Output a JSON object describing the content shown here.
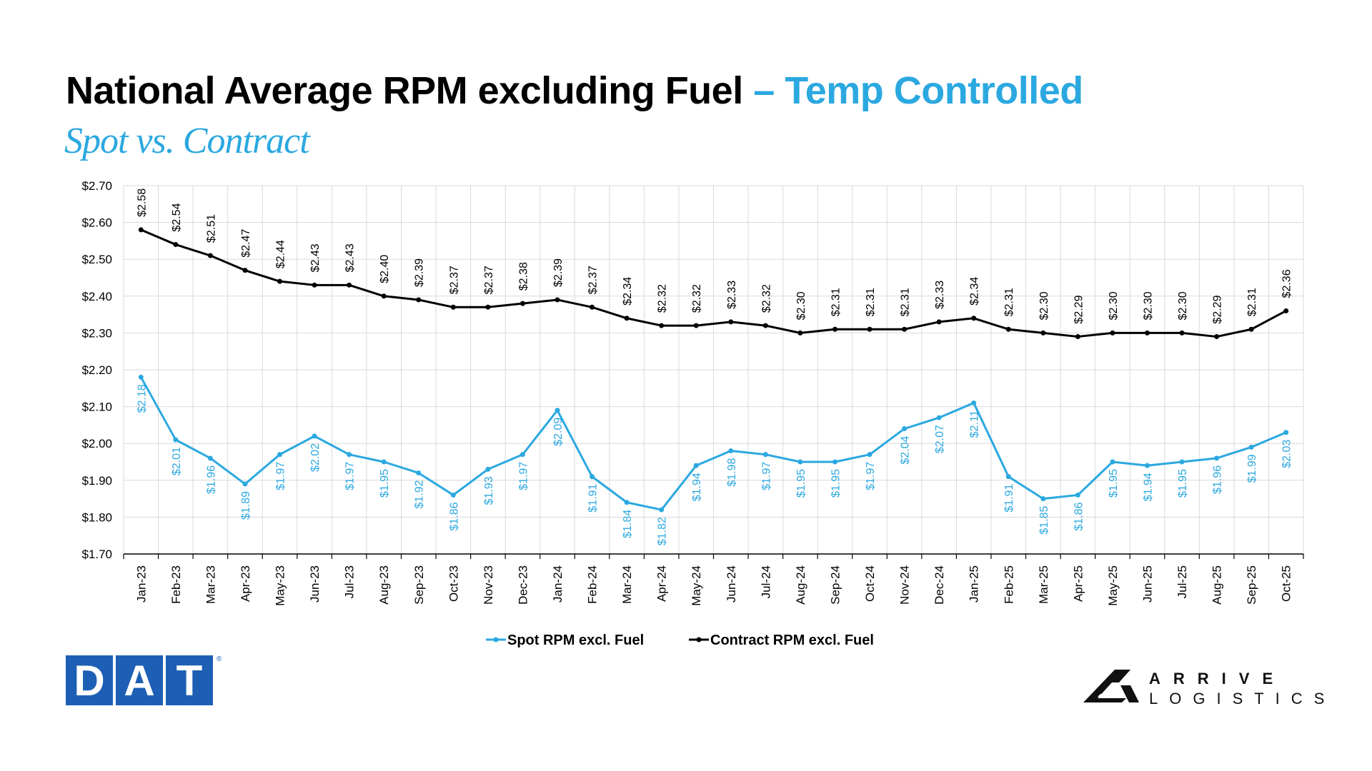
{
  "header": {
    "title_main": "National Average RPM excluding Fuel",
    "title_accent": "– Temp Controlled",
    "subtitle": "Spot vs. Contract"
  },
  "logos": {
    "dat_letters": [
      "D",
      "A",
      "T"
    ],
    "dat_registered": "®",
    "arrive_top": "ARRIVE",
    "arrive_bottom": "LOGISTICS"
  },
  "colors": {
    "spot": "#2ba8e0",
    "contract": "#000000",
    "grid": "#d9d9d9",
    "dat_blue": "#1d5fb4"
  },
  "chart_data": {
    "type": "line",
    "title": "National Average RPM excluding Fuel – Temp Controlled",
    "subtitle": "Spot vs. Contract",
    "xlabel": "",
    "ylabel": "",
    "ylim": [
      1.7,
      2.7
    ],
    "y_ticks": [
      "$1.70",
      "$1.80",
      "$1.90",
      "$2.00",
      "$2.10",
      "$2.20",
      "$2.30",
      "$2.40",
      "$2.50",
      "$2.60",
      "$2.70"
    ],
    "grid": true,
    "legend_position": "bottom",
    "categories": [
      "Jan-23",
      "Feb-23",
      "Mar-23",
      "Apr-23",
      "May-23",
      "Jun-23",
      "Jul-23",
      "Aug-23",
      "Sep-23",
      "Oct-23",
      "Nov-23",
      "Dec-23",
      "Jan-24",
      "Feb-24",
      "Mar-24",
      "Apr-24",
      "May-24",
      "Jun-24",
      "Jul-24",
      "Aug-24",
      "Sep-24",
      "Oct-24",
      "Nov-24",
      "Dec-24",
      "Jan-25",
      "Feb-25",
      "Mar-25",
      "Apr-25",
      "May-25",
      "Jun-25",
      "Jul-25",
      "Aug-25",
      "Sep-25",
      "Oct-25"
    ],
    "series": [
      {
        "name": "Spot RPM excl. Fuel",
        "values": [
          2.18,
          2.01,
          1.96,
          1.89,
          1.97,
          2.02,
          1.97,
          1.95,
          1.92,
          1.86,
          1.93,
          1.97,
          2.09,
          1.91,
          1.84,
          1.82,
          1.94,
          1.98,
          1.97,
          1.95,
          1.95,
          1.97,
          2.04,
          2.07,
          2.11,
          1.91,
          1.85,
          1.86,
          1.95,
          1.94,
          1.95,
          1.96,
          1.99,
          2.03
        ],
        "labels": [
          "$2.18",
          "$2.01",
          "$1.96",
          "$1.89",
          "$1.97",
          "$2.02",
          "$1.97",
          "$1.95",
          "$1.92",
          "$1.86",
          "$1.93",
          "$1.97",
          "$2.09",
          "$1.91",
          "$1.84",
          "$1.82",
          "$1.94",
          "$1.98",
          "$1.97",
          "$1.95",
          "$1.95",
          "$1.97",
          "$2.04",
          "$2.07",
          "$2.11",
          "$1.91",
          "$1.85",
          "$1.86",
          "$1.95",
          "$1.94",
          "$1.95",
          "$1.96",
          "$1.99",
          "$2.03"
        ]
      },
      {
        "name": "Contract RPM excl. Fuel",
        "values": [
          2.58,
          2.54,
          2.51,
          2.47,
          2.44,
          2.43,
          2.43,
          2.4,
          2.39,
          2.37,
          2.37,
          2.38,
          2.39,
          2.37,
          2.34,
          2.32,
          2.32,
          2.33,
          2.32,
          2.3,
          2.31,
          2.31,
          2.31,
          2.33,
          2.34,
          2.31,
          2.3,
          2.29,
          2.3,
          2.3,
          2.3,
          2.29,
          2.31,
          2.36
        ],
        "labels": [
          "$2.58",
          "$2.54",
          "$2.51",
          "$2.47",
          "$2.44",
          "$2.43",
          "$2.43",
          "$2.40",
          "$2.39",
          "$2.37",
          "$2.37",
          "$2.38",
          "$2.39",
          "$2.37",
          "$2.34",
          "$2.32",
          "$2.32",
          "$2.33",
          "$2.32",
          "$2.30",
          "$2.31",
          "$2.31",
          "$2.31",
          "$2.33",
          "$2.34",
          "$2.31",
          "$2.30",
          "$2.29",
          "$2.30",
          "$2.30",
          "$2.30",
          "$2.29",
          "$2.31",
          "$2.36"
        ]
      }
    ]
  }
}
